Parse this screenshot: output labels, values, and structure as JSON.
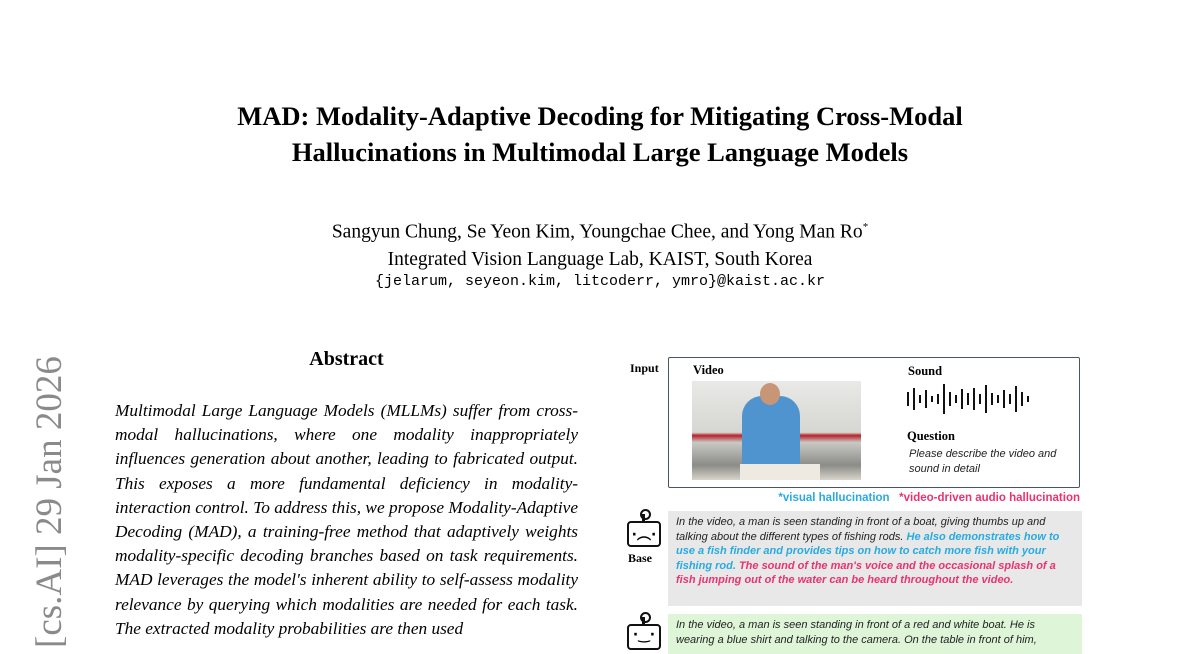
{
  "paper": {
    "title_line1": "MAD: Modality-Adaptive Decoding for Mitigating Cross-Modal",
    "title_line2": "Hallucinations in Multimodal Large Language Models",
    "authors": "Sangyun Chung, Se Yeon Kim, Youngchae Chee, and Yong Man Ro",
    "author_mark": "*",
    "affiliation": "Integrated Vision Language Lab, KAIST, South Korea",
    "emails": "{jelarum, seyeon.kim, litcoderr, ymro}@kaist.ac.kr",
    "arxiv_stamp": "[cs.AI]  29 Jan 2026"
  },
  "abstract": {
    "heading": "Abstract",
    "text": "Multimodal Large Language Models (MLLMs) suffer from cross-modal hallucinations, where one modality inappropriately influences generation about another, leading to fabricated output. This exposes a more fundamental deficiency in modality-interaction control. To address this, we propose Modality-Adaptive Decoding (MAD), a training-free method that adaptively weights modality-specific decoding branches based on task requirements. MAD leverages the model's inherent ability to self-assess modality relevance by querying which modalities are needed for each task. The extracted modality probabilities are then used"
  },
  "figure": {
    "input_label": "Input",
    "video_label": "Video",
    "sound_label": "Sound",
    "question_label": "Question",
    "question_text": "Please describe the video and sound in detail",
    "legend_visual": "*visual hallucination",
    "legend_audio": "*video-driven audio hallucination",
    "colors": {
      "visual": "#29aae1",
      "audio": "#e8336f",
      "base_bg": "#e8e8e8",
      "mad_bg": "#dff5d8"
    },
    "base": {
      "label": "Base",
      "icon": "sad-robot-icon",
      "normal": "In the video, a man is seen standing in front of a boat, giving thumbs up and talking about the different types of fishing rods. ",
      "visual": "He also demonstrates how to use a fish finder and provides tips on how to catch more fish with your fishing rod. ",
      "audio": "The sound of the man's voice and the occasional splash of a fish jumping out of the water can be heard throughout the video."
    },
    "mad": {
      "icon": "happy-robot-icon",
      "text": "In the video, a man is seen standing in front of a red and white boat. He is wearing a blue shirt and talking to the camera. On the table in front of him,"
    }
  }
}
